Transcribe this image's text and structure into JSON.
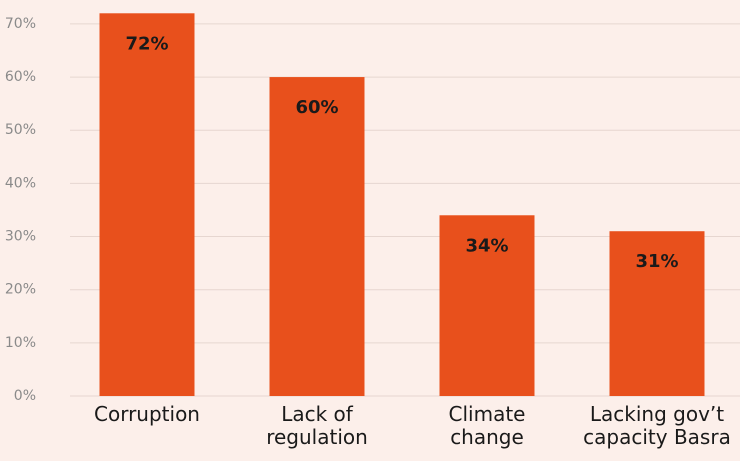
{
  "chart_data": {
    "type": "bar",
    "categories": [
      "Corruption",
      "Lack of\nregulation",
      "Climate\nchange",
      "Lacking gov’t\ncapacity Basra"
    ],
    "values": [
      72,
      60,
      34,
      31
    ],
    "value_labels": [
      "72%",
      "60%",
      "34%",
      "31%"
    ],
    "color": "#e8501c",
    "ylim": [
      0,
      74.5
    ],
    "yticks": [
      {
        "value": 0,
        "label": "0%"
      },
      {
        "value": 10,
        "label": "10%"
      },
      {
        "value": 20,
        "label": "20%"
      },
      {
        "value": 30,
        "label": "30%"
      },
      {
        "value": 40,
        "label": "40%"
      },
      {
        "value": 50,
        "label": "50%"
      },
      {
        "value": 60,
        "label": "60%"
      },
      {
        "value": 70,
        "label": "70%"
      }
    ],
    "grid": true
  }
}
